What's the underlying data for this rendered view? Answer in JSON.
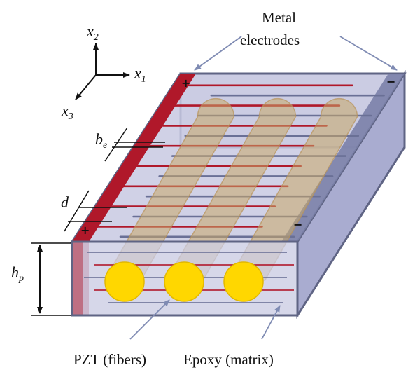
{
  "labels": {
    "metal_electrodes_line1": "Metal",
    "metal_electrodes_line2": "electrodes",
    "pzt_fibers": "PZT (fibers)",
    "epoxy_matrix": "Epoxy (matrix)"
  },
  "axes": {
    "x1": {
      "base": "x",
      "sub": "1"
    },
    "x2": {
      "base": "x",
      "sub": "2"
    },
    "x3": {
      "base": "x",
      "sub": "3"
    }
  },
  "dimensions": {
    "be": {
      "base": "b",
      "sub": "e"
    },
    "d": {
      "base": "d"
    },
    "hp": {
      "base": "h",
      "sub": "p"
    }
  },
  "signs": {
    "plus": "+",
    "minus": "−"
  },
  "colors": {
    "epoxy_fill": "#c8c9e2",
    "epoxy_side": "#a9acd0",
    "electrode_red": "#b0182a",
    "electrode_blue": "#6a7096",
    "fiber_fill": "#ffd700",
    "fiber_tube": "#c9a866",
    "frame": "#5f6484"
  },
  "pzt_fiber_count": 3
}
